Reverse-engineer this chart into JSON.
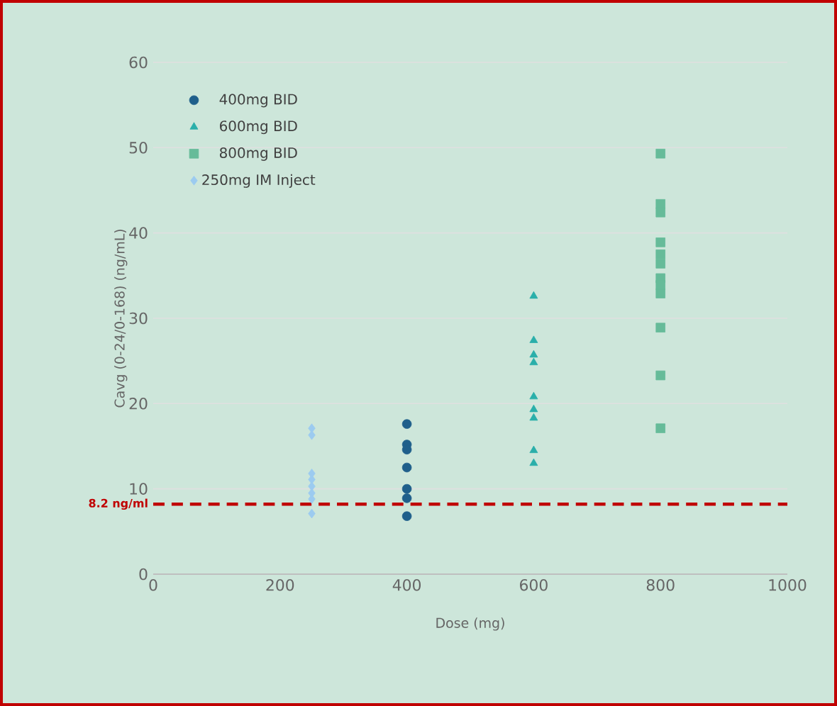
{
  "chart_data": {
    "type": "scatter",
    "xlabel": "Dose (mg)",
    "ylabel": "Cavg (0-24/0-168) (ng/mL)",
    "xlim": [
      0,
      1000
    ],
    "xticks": [
      0,
      200,
      400,
      600,
      800,
      1000
    ],
    "ylim": [
      0,
      60
    ],
    "yticks": [
      0,
      10,
      20,
      30,
      40,
      50,
      60
    ],
    "grid": "y",
    "legend": "top left",
    "series": [
      {
        "name": "400mg BID",
        "color": "#1f5f8b",
        "marker": "circle",
        "x": [
          400,
          400,
          400,
          400,
          400,
          400,
          400
        ],
        "values": [
          17.6,
          15.2,
          14.6,
          12.5,
          10.0,
          8.9,
          6.8
        ]
      },
      {
        "name": "600mg BID",
        "color": "#2aafaa",
        "marker": "triangle",
        "x": [
          600,
          600,
          600,
          600,
          600,
          600,
          600,
          600,
          600
        ],
        "values": [
          32.6,
          27.4,
          25.7,
          24.8,
          20.8,
          19.3,
          18.3,
          14.5,
          13.0
        ]
      },
      {
        "name": "800mg BID",
        "color": "#66bb99",
        "marker": "square",
        "x": [
          800,
          800,
          800,
          800,
          800,
          800,
          800,
          800,
          800,
          800,
          800,
          800
        ],
        "values": [
          49.3,
          43.4,
          42.4,
          38.9,
          37.5,
          36.4,
          34.7,
          33.9,
          32.9,
          28.9,
          23.3,
          17.1
        ]
      },
      {
        "name": "250mg IM Inject",
        "color": "#9ccbf0",
        "marker": "diamond",
        "x": [
          250,
          250,
          250,
          250,
          250,
          250,
          250,
          250
        ],
        "values": [
          17.1,
          16.3,
          11.8,
          11.1,
          10.3,
          9.5,
          8.8,
          7.1
        ]
      }
    ],
    "ref_lines": [
      {
        "axis": "y",
        "value": 8.2,
        "label": "8.2 ng/ml",
        "color": "#c00000",
        "line_style": "dashed"
      }
    ]
  }
}
